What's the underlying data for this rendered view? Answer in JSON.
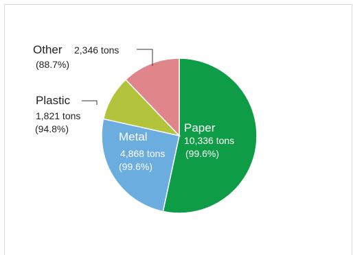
{
  "chart_data": {
    "type": "pie",
    "title": "",
    "unit": "tons",
    "slices": [
      {
        "name": "Paper",
        "value": 10336,
        "value_label": "10,336 tons",
        "pct_label": "(99.6%)",
        "color": "#0e9c46",
        "text_color": "#ffffff"
      },
      {
        "name": "Metal",
        "value": 4868,
        "value_label": "4,868 tons",
        "pct_label": "(99.6%)",
        "color": "#6badde",
        "text_color": "#ffffff"
      },
      {
        "name": "Plastic",
        "value": 1821,
        "value_label": "1,821 tons",
        "pct_label": "(94.8%)",
        "color": "#b3c43c",
        "text_color": "#222222"
      },
      {
        "name": "Other",
        "value": 2346,
        "value_label": "2,346 tons",
        "pct_label": "(88.7%)",
        "color": "#e08589",
        "text_color": "#222222"
      }
    ]
  }
}
